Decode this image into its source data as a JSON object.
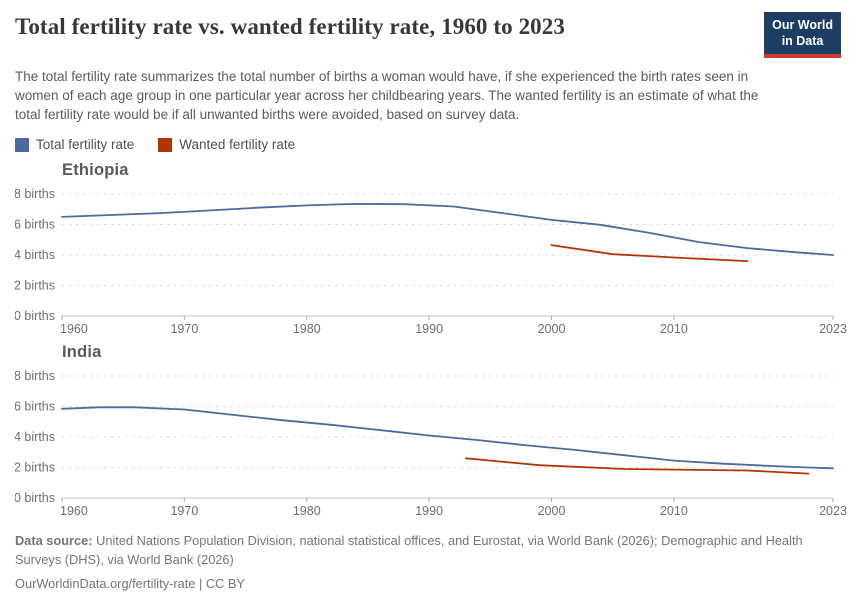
{
  "header": {
    "title": "Total fertility rate vs. wanted fertility rate, 1960 to 2023",
    "logo": {
      "line1": "Our World",
      "line2": "in Data"
    }
  },
  "subtitle": "The total fertility rate summarizes the total number of births a woman would have, if she experienced the birth rates seen in women of each age group in one particular year across her childbearing years. The wanted fertility is an estimate of what the total fertility rate would be if all unwanted births were avoided, based on survey data.",
  "legend": [
    {
      "label": "Total fertility rate",
      "color": "#4C6A9C"
    },
    {
      "label": "Wanted fertility rate",
      "color": "#B13507"
    }
  ],
  "chart_data": [
    {
      "type": "line",
      "title": "Ethiopia",
      "xlabel": "",
      "ylabel": "births",
      "xlim": [
        1960,
        2023
      ],
      "ylim": [
        0,
        8
      ],
      "grid": true,
      "x_ticks": [
        1960,
        1970,
        1980,
        1990,
        2000,
        2010,
        2023
      ],
      "y_ticks": [
        {
          "value": 8,
          "label": "8 births"
        },
        {
          "value": 6,
          "label": "6 births"
        },
        {
          "value": 4,
          "label": "4 births"
        },
        {
          "value": 2,
          "label": "2 births"
        },
        {
          "value": 0,
          "label": "0 births"
        }
      ],
      "series": [
        {
          "name": "Total fertility rate",
          "color": "#4C6A9C",
          "points": [
            [
              1960,
              6.5
            ],
            [
              1964,
              6.62
            ],
            [
              1968,
              6.75
            ],
            [
              1972,
              6.92
            ],
            [
              1976,
              7.1
            ],
            [
              1980,
              7.25
            ],
            [
              1984,
              7.35
            ],
            [
              1988,
              7.33
            ],
            [
              1992,
              7.18
            ],
            [
              1996,
              6.75
            ],
            [
              2000,
              6.3
            ],
            [
              2004,
              5.98
            ],
            [
              2008,
              5.45
            ],
            [
              2012,
              4.85
            ],
            [
              2016,
              4.45
            ],
            [
              2020,
              4.18
            ],
            [
              2023,
              4.0
            ]
          ]
        },
        {
          "name": "Wanted fertility rate",
          "color": "#B13507",
          "points": [
            [
              2000,
              4.65
            ],
            [
              2005,
              4.05
            ],
            [
              2011,
              3.8
            ],
            [
              2016,
              3.6
            ]
          ]
        }
      ]
    },
    {
      "type": "line",
      "title": "India",
      "xlabel": "",
      "ylabel": "births",
      "xlim": [
        1960,
        2023
      ],
      "ylim": [
        0,
        8
      ],
      "grid": true,
      "x_ticks": [
        1960,
        1970,
        1980,
        1990,
        2000,
        2010,
        2023
      ],
      "y_ticks": [
        {
          "value": 8,
          "label": "8 births"
        },
        {
          "value": 6,
          "label": "6 births"
        },
        {
          "value": 4,
          "label": "4 births"
        },
        {
          "value": 2,
          "label": "2 births"
        },
        {
          "value": 0,
          "label": "0 births"
        }
      ],
      "series": [
        {
          "name": "Total fertility rate",
          "color": "#4C6A9C",
          "points": [
            [
              1960,
              5.85
            ],
            [
              1963,
              5.95
            ],
            [
              1966,
              5.95
            ],
            [
              1970,
              5.8
            ],
            [
              1974,
              5.45
            ],
            [
              1978,
              5.1
            ],
            [
              1982,
              4.8
            ],
            [
              1986,
              4.45
            ],
            [
              1990,
              4.1
            ],
            [
              1994,
              3.8
            ],
            [
              1998,
              3.45
            ],
            [
              2002,
              3.15
            ],
            [
              2006,
              2.8
            ],
            [
              2010,
              2.45
            ],
            [
              2014,
              2.25
            ],
            [
              2018,
              2.1
            ],
            [
              2021,
              2.0
            ],
            [
              2023,
              1.95
            ]
          ]
        },
        {
          "name": "Wanted fertility rate",
          "color": "#B13507",
          "points": [
            [
              1993,
              2.6
            ],
            [
              1999,
              2.15
            ],
            [
              2006,
              1.9
            ],
            [
              2016,
              1.8
            ],
            [
              2021,
              1.6
            ]
          ]
        }
      ]
    }
  ],
  "footer": {
    "source_label": "Data source:",
    "source_text": " United Nations Population Division, national statistical offices, and Eurostat, via World Bank (2026); Demographic and Health Surveys (DHS), via World Bank (2026)",
    "link_line": "OurWorldinData.org/fertility-rate | CC BY"
  }
}
